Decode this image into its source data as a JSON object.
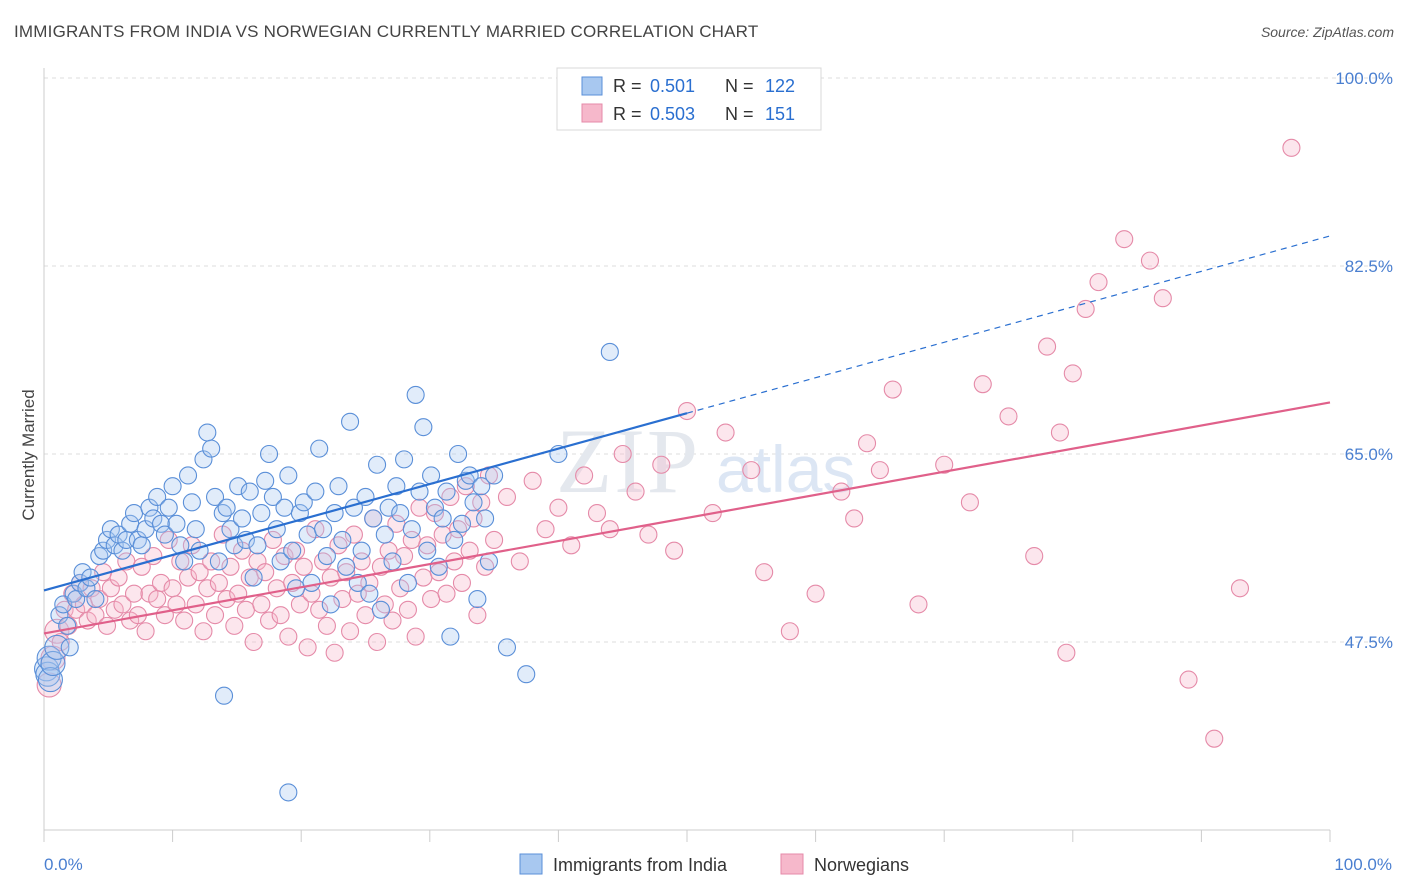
{
  "title": "IMMIGRANTS FROM INDIA VS NORWEGIAN CURRENTLY MARRIED CORRELATION CHART",
  "source": "Source: ZipAtlas.com",
  "watermark": {
    "zip": "ZIP",
    "atlas": "atlas"
  },
  "colors": {
    "india_fill": "#a8c8f0",
    "india_stroke": "#5a8fd8",
    "india_line": "#2a6fd0",
    "nor_fill": "#f6b8cb",
    "nor_stroke": "#e58aa8",
    "nor_line": "#e0608a",
    "tick_label": "#4a7fd0",
    "grid": "#dddddd"
  },
  "legend": {
    "rows": [
      {
        "r_label": "R =",
        "r_value": "0.501",
        "n_label": "N =",
        "n_value": "122"
      },
      {
        "r_label": "R =",
        "r_value": "0.503",
        "n_label": "N =",
        "n_value": "151"
      }
    ]
  },
  "chart_data": {
    "type": "scatter",
    "xlabel": "",
    "ylabel": "Currently Married",
    "xlim": [
      0,
      100
    ],
    "ylim": [
      30,
      100
    ],
    "x_tick_labels": [
      "0.0%",
      "100.0%"
    ],
    "y_ticks": [
      47.5,
      65.0,
      82.5,
      100.0
    ],
    "y_tick_labels": [
      "47.5%",
      "65.0%",
      "82.5%",
      "100.0%"
    ],
    "grid": "horizontal dashed",
    "legend_position": "bottom",
    "series": [
      {
        "name": "Immigrants from India",
        "r": 0.501,
        "n": 122,
        "trend": {
          "x0": 0,
          "y0": 52.3,
          "x1": 50,
          "y1": 68.8,
          "dashed_to_x": 100,
          "dashed_to_y": 85.3
        },
        "points": [
          [
            0.2,
            45.0
          ],
          [
            0.3,
            44.5
          ],
          [
            0.4,
            46.0
          ],
          [
            0.5,
            44.0
          ],
          [
            0.7,
            45.5
          ],
          [
            1.0,
            47.0
          ],
          [
            1.2,
            50.0
          ],
          [
            1.5,
            51.0
          ],
          [
            1.8,
            49.0
          ],
          [
            2.0,
            47.0
          ],
          [
            2.3,
            52.0
          ],
          [
            2.5,
            51.5
          ],
          [
            2.8,
            53.0
          ],
          [
            3.0,
            54.0
          ],
          [
            3.3,
            52.5
          ],
          [
            3.6,
            53.5
          ],
          [
            4.0,
            51.5
          ],
          [
            4.3,
            55.5
          ],
          [
            4.6,
            56.0
          ],
          [
            4.9,
            57.0
          ],
          [
            5.2,
            58.0
          ],
          [
            5.5,
            56.5
          ],
          [
            5.8,
            57.5
          ],
          [
            6.1,
            56.0
          ],
          [
            6.4,
            57.0
          ],
          [
            6.7,
            58.5
          ],
          [
            7.0,
            59.5
          ],
          [
            7.3,
            57.0
          ],
          [
            7.6,
            56.5
          ],
          [
            7.9,
            58.0
          ],
          [
            8.2,
            60.0
          ],
          [
            8.5,
            59.0
          ],
          [
            8.8,
            61.0
          ],
          [
            9.1,
            58.5
          ],
          [
            9.4,
            57.5
          ],
          [
            9.7,
            60.0
          ],
          [
            10.0,
            62.0
          ],
          [
            10.3,
            58.5
          ],
          [
            10.6,
            56.5
          ],
          [
            10.9,
            55.0
          ],
          [
            11.2,
            63.0
          ],
          [
            11.5,
            60.5
          ],
          [
            11.8,
            58.0
          ],
          [
            12.1,
            56.0
          ],
          [
            12.4,
            64.5
          ],
          [
            12.7,
            67.0
          ],
          [
            13.0,
            65.5
          ],
          [
            13.3,
            61.0
          ],
          [
            13.6,
            55.0
          ],
          [
            13.9,
            59.5
          ],
          [
            14.2,
            60.0
          ],
          [
            14.5,
            58.0
          ],
          [
            14.8,
            56.5
          ],
          [
            15.1,
            62.0
          ],
          [
            15.4,
            59.0
          ],
          [
            15.7,
            57.0
          ],
          [
            16.0,
            61.5
          ],
          [
            16.3,
            53.5
          ],
          [
            16.6,
            56.5
          ],
          [
            16.9,
            59.5
          ],
          [
            17.2,
            62.5
          ],
          [
            17.5,
            65.0
          ],
          [
            17.8,
            61.0
          ],
          [
            18.1,
            58.0
          ],
          [
            18.4,
            55.0
          ],
          [
            18.7,
            60.0
          ],
          [
            19.0,
            63.0
          ],
          [
            19.3,
            56.0
          ],
          [
            19.6,
            52.5
          ],
          [
            19.9,
            59.5
          ],
          [
            20.2,
            60.5
          ],
          [
            20.5,
            57.5
          ],
          [
            20.8,
            53.0
          ],
          [
            21.1,
            61.5
          ],
          [
            21.4,
            65.5
          ],
          [
            21.7,
            58.0
          ],
          [
            22.0,
            55.5
          ],
          [
            22.3,
            51.0
          ],
          [
            22.6,
            59.5
          ],
          [
            22.9,
            62.0
          ],
          [
            23.2,
            57.0
          ],
          [
            23.5,
            54.5
          ],
          [
            23.8,
            68.0
          ],
          [
            24.1,
            60.0
          ],
          [
            24.4,
            53.0
          ],
          [
            24.7,
            56.0
          ],
          [
            25.0,
            61.0
          ],
          [
            25.3,
            52.0
          ],
          [
            25.6,
            59.0
          ],
          [
            25.9,
            64.0
          ],
          [
            26.2,
            50.5
          ],
          [
            26.5,
            57.5
          ],
          [
            26.8,
            60.0
          ],
          [
            27.1,
            55.0
          ],
          [
            27.4,
            62.0
          ],
          [
            27.7,
            59.5
          ],
          [
            28.0,
            64.5
          ],
          [
            28.3,
            53.0
          ],
          [
            28.6,
            58.0
          ],
          [
            28.9,
            70.5
          ],
          [
            29.2,
            61.5
          ],
          [
            29.5,
            67.5
          ],
          [
            29.8,
            56.0
          ],
          [
            30.1,
            63.0
          ],
          [
            30.4,
            60.0
          ],
          [
            30.7,
            54.5
          ],
          [
            31.0,
            59.0
          ],
          [
            31.3,
            61.5
          ],
          [
            31.6,
            48.0
          ],
          [
            31.9,
            57.0
          ],
          [
            32.2,
            65.0
          ],
          [
            32.5,
            58.5
          ],
          [
            32.8,
            62.5
          ],
          [
            33.1,
            63.0
          ],
          [
            33.4,
            60.5
          ],
          [
            33.7,
            51.5
          ],
          [
            34.0,
            62.0
          ],
          [
            34.3,
            59.0
          ],
          [
            34.6,
            55.0
          ],
          [
            35.0,
            63.0
          ],
          [
            36.0,
            47.0
          ],
          [
            37.5,
            44.5
          ],
          [
            40.0,
            65.0
          ],
          [
            44.0,
            74.5
          ],
          [
            14.0,
            42.5
          ],
          [
            19.0,
            33.5
          ]
        ]
      },
      {
        "name": "Norwegians",
        "r": 0.503,
        "n": 151,
        "trend": {
          "x0": 0,
          "y0": 48.3,
          "x1": 100,
          "y1": 69.8
        },
        "points": [
          [
            0.4,
            43.5
          ],
          [
            0.7,
            46.0
          ],
          [
            1.0,
            48.5
          ],
          [
            1.3,
            47.5
          ],
          [
            1.6,
            50.5
          ],
          [
            1.9,
            49.0
          ],
          [
            2.2,
            52.0
          ],
          [
            2.5,
            50.5
          ],
          [
            2.8,
            53.0
          ],
          [
            3.1,
            51.0
          ],
          [
            3.4,
            49.5
          ],
          [
            3.7,
            52.5
          ],
          [
            4.0,
            50.0
          ],
          [
            4.3,
            51.5
          ],
          [
            4.6,
            54.0
          ],
          [
            4.9,
            49.0
          ],
          [
            5.2,
            52.5
          ],
          [
            5.5,
            50.5
          ],
          [
            5.8,
            53.5
          ],
          [
            6.1,
            51.0
          ],
          [
            6.4,
            55.0
          ],
          [
            6.7,
            49.5
          ],
          [
            7.0,
            52.0
          ],
          [
            7.3,
            50.0
          ],
          [
            7.6,
            54.5
          ],
          [
            7.9,
            48.5
          ],
          [
            8.2,
            52.0
          ],
          [
            8.5,
            55.5
          ],
          [
            8.8,
            51.5
          ],
          [
            9.1,
            53.0
          ],
          [
            9.4,
            50.0
          ],
          [
            9.7,
            57.0
          ],
          [
            10.0,
            52.5
          ],
          [
            10.3,
            51.0
          ],
          [
            10.6,
            55.0
          ],
          [
            10.9,
            49.5
          ],
          [
            11.2,
            53.5
          ],
          [
            11.5,
            56.5
          ],
          [
            11.8,
            51.0
          ],
          [
            12.1,
            54.0
          ],
          [
            12.4,
            48.5
          ],
          [
            12.7,
            52.5
          ],
          [
            13.0,
            55.0
          ],
          [
            13.3,
            50.0
          ],
          [
            13.6,
            53.0
          ],
          [
            13.9,
            57.5
          ],
          [
            14.2,
            51.5
          ],
          [
            14.5,
            54.5
          ],
          [
            14.8,
            49.0
          ],
          [
            15.1,
            52.0
          ],
          [
            15.4,
            56.0
          ],
          [
            15.7,
            50.5
          ],
          [
            16.0,
            53.5
          ],
          [
            16.3,
            47.5
          ],
          [
            16.6,
            55.0
          ],
          [
            16.9,
            51.0
          ],
          [
            17.2,
            54.0
          ],
          [
            17.5,
            49.5
          ],
          [
            17.8,
            57.0
          ],
          [
            18.1,
            52.5
          ],
          [
            18.4,
            50.0
          ],
          [
            18.7,
            55.5
          ],
          [
            19.0,
            48.0
          ],
          [
            19.3,
            53.0
          ],
          [
            19.6,
            56.0
          ],
          [
            19.9,
            51.0
          ],
          [
            20.2,
            54.5
          ],
          [
            20.5,
            47.0
          ],
          [
            20.8,
            52.0
          ],
          [
            21.1,
            58.0
          ],
          [
            21.4,
            50.5
          ],
          [
            21.7,
            55.0
          ],
          [
            22.0,
            49.0
          ],
          [
            22.3,
            53.5
          ],
          [
            22.6,
            46.5
          ],
          [
            22.9,
            56.5
          ],
          [
            23.2,
            51.5
          ],
          [
            23.5,
            54.0
          ],
          [
            23.8,
            48.5
          ],
          [
            24.1,
            57.5
          ],
          [
            24.4,
            52.0
          ],
          [
            24.7,
            55.0
          ],
          [
            25.0,
            50.0
          ],
          [
            25.3,
            53.0
          ],
          [
            25.6,
            59.0
          ],
          [
            25.9,
            47.5
          ],
          [
            26.2,
            54.5
          ],
          [
            26.5,
            51.0
          ],
          [
            26.8,
            56.0
          ],
          [
            27.1,
            49.5
          ],
          [
            27.4,
            58.5
          ],
          [
            27.7,
            52.5
          ],
          [
            28.0,
            55.5
          ],
          [
            28.3,
            50.5
          ],
          [
            28.6,
            57.0
          ],
          [
            28.9,
            48.0
          ],
          [
            29.2,
            60.0
          ],
          [
            29.5,
            53.5
          ],
          [
            29.8,
            56.5
          ],
          [
            30.1,
            51.5
          ],
          [
            30.4,
            59.5
          ],
          [
            30.7,
            54.0
          ],
          [
            31.0,
            57.5
          ],
          [
            31.3,
            52.0
          ],
          [
            31.6,
            61.0
          ],
          [
            31.9,
            55.0
          ],
          [
            32.2,
            58.0
          ],
          [
            32.5,
            53.0
          ],
          [
            32.8,
            62.0
          ],
          [
            33.1,
            56.0
          ],
          [
            33.4,
            59.0
          ],
          [
            33.7,
            50.0
          ],
          [
            34.0,
            60.5
          ],
          [
            34.3,
            54.5
          ],
          [
            34.6,
            63.0
          ],
          [
            35.0,
            57.0
          ],
          [
            36.0,
            61.0
          ],
          [
            37.0,
            55.0
          ],
          [
            38.0,
            62.5
          ],
          [
            39.0,
            58.0
          ],
          [
            40.0,
            60.0
          ],
          [
            41.0,
            56.5
          ],
          [
            42.0,
            63.0
          ],
          [
            43.0,
            59.5
          ],
          [
            44.0,
            58.0
          ],
          [
            45.0,
            65.0
          ],
          [
            46.0,
            61.5
          ],
          [
            47.0,
            57.5
          ],
          [
            48.0,
            64.0
          ],
          [
            49.0,
            56.0
          ],
          [
            50.0,
            69.0
          ],
          [
            52.0,
            59.5
          ],
          [
            53.0,
            67.0
          ],
          [
            55.0,
            63.5
          ],
          [
            56.0,
            54.0
          ],
          [
            58.0,
            48.5
          ],
          [
            60.0,
            52.0
          ],
          [
            62.0,
            61.5
          ],
          [
            63.0,
            59.0
          ],
          [
            64.0,
            66.0
          ],
          [
            65.0,
            63.5
          ],
          [
            66.0,
            71.0
          ],
          [
            68.0,
            51.0
          ],
          [
            70.0,
            64.0
          ],
          [
            72.0,
            60.5
          ],
          [
            73.0,
            71.5
          ],
          [
            75.0,
            68.5
          ],
          [
            77.0,
            55.5
          ],
          [
            78.0,
            75.0
          ],
          [
            79.0,
            67.0
          ],
          [
            80.0,
            72.5
          ],
          [
            81.0,
            78.5
          ],
          [
            82.0,
            81.0
          ],
          [
            84.0,
            85.0
          ],
          [
            86.0,
            83.0
          ],
          [
            87.0,
            79.5
          ],
          [
            89.0,
            44.0
          ],
          [
            91.0,
            38.5
          ],
          [
            93.0,
            52.5
          ],
          [
            97.0,
            93.5
          ],
          [
            79.5,
            46.5
          ]
        ]
      }
    ]
  },
  "axis": {
    "x_left_label": "0.0%",
    "x_right_label": "100.0%"
  }
}
